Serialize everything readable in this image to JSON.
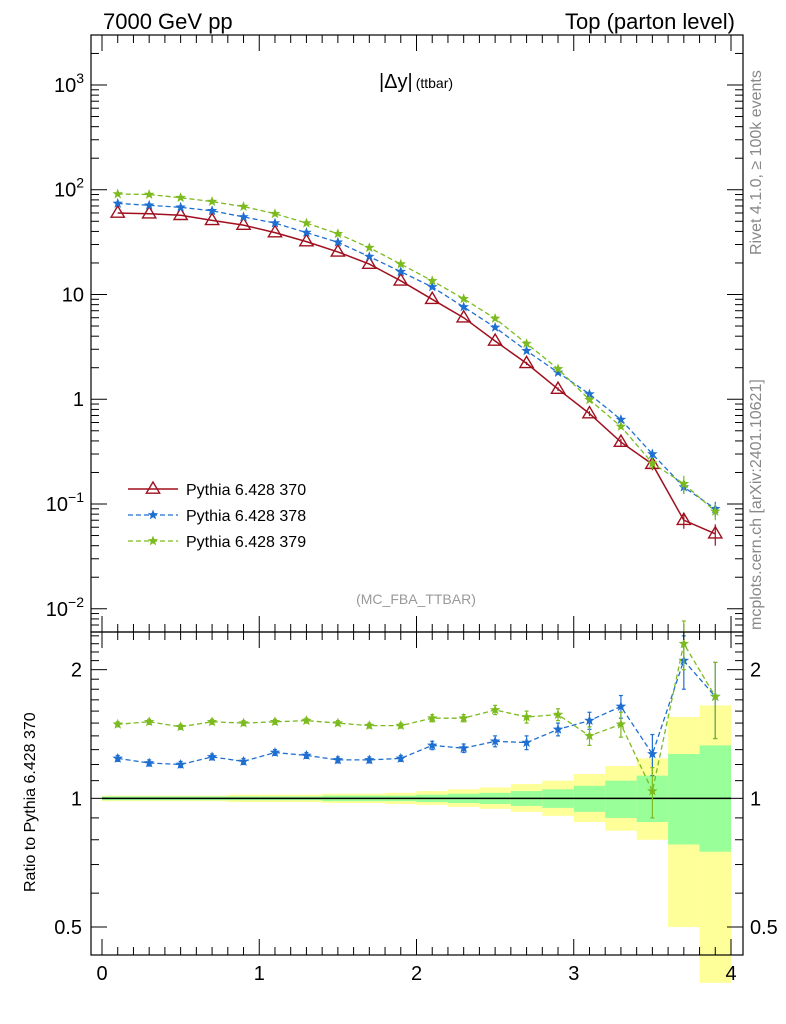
{
  "header": {
    "left": "7000 GeV pp",
    "right": "Top (parton level)"
  },
  "side_labels": {
    "rivet": "Rivet 4.1.0, ≥ 100k events",
    "mcplots": "mcplots.cern.ch [arXiv:2401.10621]"
  },
  "chart_data": {
    "type": "line",
    "title": "|Δy| (ttbar)",
    "title_main": "|Δy|",
    "title_sub": "(ttbar)",
    "watermark": "(MC_FBA_TTBAR)",
    "xlabel": "",
    "xlim": [
      0,
      4
    ],
    "x_ticks": [
      "0",
      "1",
      "2",
      "3",
      "4"
    ],
    "x": [
      0.1,
      0.3,
      0.5,
      0.7,
      0.9,
      1.1,
      1.3,
      1.5,
      1.7,
      1.9,
      2.1,
      2.3,
      2.5,
      2.7,
      2.9,
      3.1,
      3.3,
      3.5,
      3.7,
      3.9
    ],
    "bin_edges": [
      0,
      0.2,
      0.4,
      0.6,
      0.8,
      1.0,
      1.2,
      1.4,
      1.6,
      1.8,
      2.0,
      2.2,
      2.4,
      2.6,
      2.8,
      3.0,
      3.2,
      3.4,
      3.6,
      3.8,
      4.0
    ],
    "main": {
      "yscale": "log",
      "ylim": [
        0.006,
        3000
      ],
      "y_ticks": [
        {
          "base": "10",
          "exp": "−2",
          "value": 0.01
        },
        {
          "base": "10",
          "exp": "−1",
          "value": 0.1
        },
        {
          "base": "1",
          "exp": "",
          "value": 1
        },
        {
          "base": "10",
          "exp": "",
          "value": 10
        },
        {
          "base": "10",
          "exp": "2",
          "value": 100
        },
        {
          "base": "10",
          "exp": "3",
          "value": 1000
        }
      ],
      "series": [
        {
          "name": "Pythia 6.428 370",
          "color": "#a00f1e",
          "marker": "triangle",
          "dashed": false,
          "values": [
            60,
            59,
            57,
            51,
            46,
            39,
            32,
            25.5,
            19.5,
            13.5,
            9.0,
            6.0,
            3.6,
            2.2,
            1.25,
            0.73,
            0.39,
            0.24,
            0.07,
            0.052
          ],
          "errors": [
            0.8,
            0.8,
            0.8,
            0.7,
            0.6,
            0.5,
            0.4,
            0.35,
            0.3,
            0.25,
            0.2,
            0.15,
            0.1,
            0.08,
            0.05,
            0.04,
            0.03,
            0.03,
            0.012,
            0.012
          ]
        },
        {
          "name": "Pythia 6.428 378",
          "color": "#1f6fd1",
          "marker": "star",
          "dashed": true,
          "values": [
            74,
            71,
            68,
            63,
            55,
            48,
            39,
            31.5,
            23,
            16.5,
            11.8,
            7.6,
            4.85,
            2.9,
            1.8,
            1.12,
            0.64,
            0.3,
            0.145,
            0.09
          ],
          "errors": [
            0.8,
            0.8,
            0.8,
            0.7,
            0.6,
            0.5,
            0.4,
            0.35,
            0.3,
            0.25,
            0.2,
            0.15,
            0.1,
            0.08,
            0.05,
            0.05,
            0.04,
            0.03,
            0.02,
            0.015
          ]
        },
        {
          "name": "Pythia 6.428 379",
          "color": "#7cbb1f",
          "marker": "star",
          "dashed": true,
          "values": [
            91,
            90,
            84,
            77,
            69,
            59,
            48,
            38,
            28,
            19.5,
            13.5,
            9.1,
            5.9,
            3.4,
            1.95,
            0.99,
            0.55,
            0.245,
            0.156,
            0.085
          ],
          "errors": [
            0.9,
            0.9,
            0.9,
            0.8,
            0.7,
            0.6,
            0.5,
            0.4,
            0.35,
            0.3,
            0.25,
            0.15,
            0.1,
            0.08,
            0.05,
            0.04,
            0.03,
            0.03,
            0.03,
            0.015
          ]
        }
      ]
    },
    "ratio": {
      "ylabel": "Ratio to Pythia 6.428 370",
      "yscale": "log",
      "ylim": [
        0.43,
        2.45
      ],
      "y_ticks": [
        "0.5",
        "1",
        "2"
      ],
      "y_tick_values": [
        0.5,
        1,
        2
      ],
      "band_yellow": {
        "low": [
          0.985,
          0.985,
          0.985,
          0.985,
          0.98,
          0.98,
          0.98,
          0.975,
          0.975,
          0.97,
          0.965,
          0.955,
          0.945,
          0.93,
          0.91,
          0.88,
          0.84,
          0.8,
          0.5,
          0.37
        ],
        "high": [
          1.015,
          1.015,
          1.015,
          1.015,
          1.02,
          1.02,
          1.02,
          1.025,
          1.025,
          1.03,
          1.04,
          1.05,
          1.06,
          1.08,
          1.1,
          1.14,
          1.19,
          1.24,
          1.55,
          1.65
        ]
      },
      "band_green": {
        "low": [
          0.99,
          0.99,
          0.99,
          0.99,
          0.99,
          0.99,
          0.99,
          0.985,
          0.985,
          0.985,
          0.98,
          0.975,
          0.97,
          0.96,
          0.95,
          0.93,
          0.9,
          0.88,
          0.78,
          0.75
        ],
        "high": [
          1.01,
          1.01,
          1.01,
          1.01,
          1.01,
          1.01,
          1.01,
          1.015,
          1.015,
          1.015,
          1.02,
          1.025,
          1.03,
          1.04,
          1.05,
          1.07,
          1.1,
          1.13,
          1.27,
          1.33
        ]
      },
      "series": [
        {
          "name": "Pythia 6.428 378",
          "color": "#1f6fd1",
          "values": [
            1.24,
            1.21,
            1.2,
            1.25,
            1.22,
            1.28,
            1.26,
            1.23,
            1.23,
            1.24,
            1.33,
            1.31,
            1.36,
            1.35,
            1.45,
            1.52,
            1.64,
            1.27,
            2.1,
            1.73
          ],
          "errors": [
            0.02,
            0.02,
            0.02,
            0.02,
            0.02,
            0.02,
            0.02,
            0.02,
            0.02,
            0.02,
            0.03,
            0.03,
            0.04,
            0.05,
            0.05,
            0.07,
            0.1,
            0.14,
            0.3,
            0.35
          ]
        },
        {
          "name": "Pythia 6.428 379",
          "color": "#7cbb1f",
          "values": [
            1.49,
            1.51,
            1.47,
            1.51,
            1.5,
            1.51,
            1.52,
            1.5,
            1.48,
            1.48,
            1.54,
            1.54,
            1.61,
            1.55,
            1.57,
            1.4,
            1.49,
            1.04,
            2.3,
            1.73
          ],
          "errors": [
            0.02,
            0.02,
            0.02,
            0.02,
            0.02,
            0.02,
            0.02,
            0.02,
            0.02,
            0.02,
            0.03,
            0.03,
            0.04,
            0.05,
            0.05,
            0.07,
            0.1,
            0.14,
            0.3,
            0.35
          ]
        }
      ]
    }
  }
}
